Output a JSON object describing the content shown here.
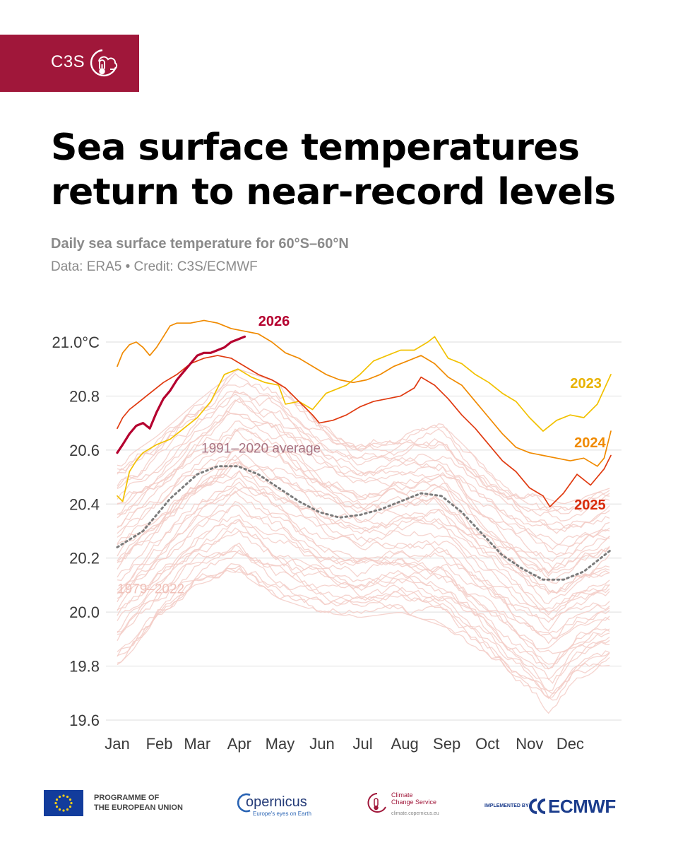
{
  "brand": {
    "label": "C3S",
    "color": "#A0173A",
    "logo_icon": "cloud-thermometer-icon"
  },
  "headline": {
    "line1": "Sea surface temperatures",
    "line2": "return to near-record levels"
  },
  "subtitle": "Daily sea surface temperature for 60°S–60°N",
  "credit": "Data: ERA5 • Credit: C3S/ECMWF",
  "chart_data": {
    "type": "line",
    "title": "",
    "xlabel": "",
    "ylabel": "",
    "ylim": [
      19.6,
      21.0
    ],
    "yticks": [
      "21.0°C",
      "20.8",
      "20.6",
      "20.4",
      "20.2",
      "20.0",
      "19.8",
      "19.6"
    ],
    "x_tick_labels": [
      "Jan",
      "Feb",
      "Mar",
      "Apr",
      "May",
      "Jun",
      "Jul",
      "Aug",
      "Sep",
      "Oct",
      "Nov",
      "Dec"
    ],
    "x_unit": "day of year",
    "grid": "horizontal",
    "legend": "direct labels",
    "series": [
      {
        "name": "2026",
        "color": "#B5002F",
        "label_color": "#B5002F",
        "width": 3.2,
        "points": [
          [
            1,
            20.59
          ],
          [
            5,
            20.62
          ],
          [
            10,
            20.66
          ],
          [
            15,
            20.69
          ],
          [
            20,
            20.7
          ],
          [
            25,
            20.68
          ],
          [
            30,
            20.74
          ],
          [
            35,
            20.79
          ],
          [
            40,
            20.82
          ],
          [
            45,
            20.86
          ],
          [
            50,
            20.89
          ],
          [
            55,
            20.92
          ],
          [
            60,
            20.95
          ],
          [
            65,
            20.96
          ],
          [
            70,
            20.96
          ],
          [
            75,
            20.97
          ],
          [
            80,
            20.98
          ],
          [
            85,
            21.0
          ],
          [
            90,
            21.01
          ],
          [
            95,
            21.02
          ]
        ]
      },
      {
        "name": "2023",
        "color": "#F2C100",
        "label_color": "#E8B200",
        "width": 1.7,
        "points": [
          [
            1,
            20.43
          ],
          [
            5,
            20.41
          ],
          [
            10,
            20.52
          ],
          [
            15,
            20.56
          ],
          [
            20,
            20.59
          ],
          [
            30,
            20.62
          ],
          [
            40,
            20.64
          ],
          [
            50,
            20.68
          ],
          [
            60,
            20.72
          ],
          [
            70,
            20.78
          ],
          [
            80,
            20.88
          ],
          [
            90,
            20.9
          ],
          [
            100,
            20.87
          ],
          [
            110,
            20.85
          ],
          [
            120,
            20.84
          ],
          [
            125,
            20.77
          ],
          [
            135,
            20.78
          ],
          [
            145,
            20.75
          ],
          [
            155,
            20.81
          ],
          [
            170,
            20.84
          ],
          [
            180,
            20.88
          ],
          [
            190,
            20.93
          ],
          [
            200,
            20.95
          ],
          [
            210,
            20.97
          ],
          [
            220,
            20.97
          ],
          [
            230,
            21.0
          ],
          [
            235,
            21.02
          ],
          [
            245,
            20.94
          ],
          [
            255,
            20.92
          ],
          [
            265,
            20.88
          ],
          [
            275,
            20.85
          ],
          [
            285,
            20.81
          ],
          [
            295,
            20.78
          ],
          [
            305,
            20.72
          ],
          [
            315,
            20.67
          ],
          [
            325,
            20.71
          ],
          [
            335,
            20.73
          ],
          [
            345,
            20.72
          ],
          [
            355,
            20.77
          ],
          [
            365,
            20.88
          ]
        ]
      },
      {
        "name": "2024",
        "color": "#F08A00",
        "label_color": "#F08A00",
        "width": 1.7,
        "points": [
          [
            1,
            20.91
          ],
          [
            5,
            20.96
          ],
          [
            10,
            20.99
          ],
          [
            15,
            21.0
          ],
          [
            20,
            20.98
          ],
          [
            25,
            20.95
          ],
          [
            30,
            20.98
          ],
          [
            35,
            21.02
          ],
          [
            40,
            21.06
          ],
          [
            45,
            21.07
          ],
          [
            55,
            21.07
          ],
          [
            65,
            21.08
          ],
          [
            75,
            21.07
          ],
          [
            85,
            21.05
          ],
          [
            95,
            21.04
          ],
          [
            105,
            21.03
          ],
          [
            115,
            21.0
          ],
          [
            125,
            20.96
          ],
          [
            135,
            20.94
          ],
          [
            145,
            20.91
          ],
          [
            155,
            20.88
          ],
          [
            165,
            20.86
          ],
          [
            175,
            20.85
          ],
          [
            185,
            20.86
          ],
          [
            195,
            20.88
          ],
          [
            205,
            20.91
          ],
          [
            215,
            20.93
          ],
          [
            225,
            20.95
          ],
          [
            235,
            20.92
          ],
          [
            245,
            20.87
          ],
          [
            255,
            20.84
          ],
          [
            265,
            20.78
          ],
          [
            275,
            20.72
          ],
          [
            285,
            20.66
          ],
          [
            295,
            20.61
          ],
          [
            305,
            20.59
          ],
          [
            315,
            20.58
          ],
          [
            325,
            20.57
          ],
          [
            335,
            20.56
          ],
          [
            345,
            20.57
          ],
          [
            355,
            20.54
          ],
          [
            360,
            20.57
          ],
          [
            365,
            20.67
          ]
        ]
      },
      {
        "name": "2025",
        "color": "#E03A10",
        "label_color": "#D82A0A",
        "width": 1.7,
        "points": [
          [
            1,
            20.68
          ],
          [
            5,
            20.72
          ],
          [
            10,
            20.75
          ],
          [
            15,
            20.77
          ],
          [
            25,
            20.81
          ],
          [
            35,
            20.85
          ],
          [
            45,
            20.88
          ],
          [
            55,
            20.92
          ],
          [
            65,
            20.94
          ],
          [
            75,
            20.95
          ],
          [
            85,
            20.94
          ],
          [
            95,
            20.91
          ],
          [
            105,
            20.88
          ],
          [
            115,
            20.86
          ],
          [
            125,
            20.83
          ],
          [
            135,
            20.78
          ],
          [
            145,
            20.73
          ],
          [
            150,
            20.7
          ],
          [
            160,
            20.71
          ],
          [
            170,
            20.73
          ],
          [
            180,
            20.76
          ],
          [
            190,
            20.78
          ],
          [
            200,
            20.79
          ],
          [
            210,
            20.8
          ],
          [
            220,
            20.83
          ],
          [
            225,
            20.87
          ],
          [
            235,
            20.84
          ],
          [
            245,
            20.79
          ],
          [
            255,
            20.73
          ],
          [
            265,
            20.68
          ],
          [
            275,
            20.62
          ],
          [
            285,
            20.56
          ],
          [
            295,
            20.52
          ],
          [
            305,
            20.46
          ],
          [
            315,
            20.43
          ],
          [
            320,
            20.39
          ],
          [
            330,
            20.44
          ],
          [
            340,
            20.51
          ],
          [
            350,
            20.47
          ],
          [
            360,
            20.53
          ],
          [
            365,
            20.58
          ]
        ]
      },
      {
        "name": "1991–2020 average",
        "color": "#7C7C7C",
        "label_color": "#A87382",
        "dash": "2.5 4.5",
        "width": 3,
        "points": [
          [
            1,
            20.24
          ],
          [
            20,
            20.3
          ],
          [
            40,
            20.42
          ],
          [
            60,
            20.51
          ],
          [
            75,
            20.54
          ],
          [
            90,
            20.54
          ],
          [
            105,
            20.51
          ],
          [
            120,
            20.46
          ],
          [
            135,
            20.41
          ],
          [
            150,
            20.37
          ],
          [
            165,
            20.35
          ],
          [
            180,
            20.36
          ],
          [
            195,
            20.38
          ],
          [
            210,
            20.41
          ],
          [
            225,
            20.44
          ],
          [
            240,
            20.43
          ],
          [
            255,
            20.37
          ],
          [
            270,
            20.29
          ],
          [
            285,
            20.21
          ],
          [
            300,
            20.16
          ],
          [
            315,
            20.12
          ],
          [
            330,
            20.12
          ],
          [
            345,
            20.15
          ],
          [
            360,
            20.21
          ],
          [
            365,
            20.23
          ]
        ]
      }
    ],
    "background_series": {
      "name": "1979–2022",
      "color": "#F3CDC7",
      "label_color": "#F0C0B8",
      "count": 44,
      "envelope_low": [
        [
          1,
          19.8
        ],
        [
          30,
          19.95
        ],
        [
          60,
          20.1
        ],
        [
          90,
          20.15
        ],
        [
          120,
          20.05
        ],
        [
          150,
          20.0
        ],
        [
          180,
          19.98
        ],
        [
          210,
          20.0
        ],
        [
          240,
          19.95
        ],
        [
          270,
          19.85
        ],
        [
          300,
          19.72
        ],
        [
          320,
          19.62
        ],
        [
          340,
          19.75
        ],
        [
          365,
          19.8
        ]
      ],
      "envelope_high": [
        [
          1,
          20.55
        ],
        [
          30,
          20.65
        ],
        [
          60,
          20.78
        ],
        [
          90,
          20.9
        ],
        [
          120,
          20.85
        ],
        [
          150,
          20.72
        ],
        [
          180,
          20.64
        ],
        [
          210,
          20.66
        ],
        [
          240,
          20.7
        ],
        [
          270,
          20.55
        ],
        [
          300,
          20.45
        ],
        [
          330,
          20.4
        ],
        [
          365,
          20.46
        ]
      ]
    },
    "annotations": [
      {
        "text": "2026",
        "x": 105,
        "y": 21.06,
        "color": "#B5002F"
      },
      {
        "text": "2023",
        "x": 335,
        "y": 20.83,
        "color": "#E8B200"
      },
      {
        "text": "2024",
        "x": 338,
        "y": 20.61,
        "color": "#F08A00"
      },
      {
        "text": "2025",
        "x": 338,
        "y": 20.38,
        "color": "#D82A0A"
      },
      {
        "text": "1991–2020 average",
        "x": 63,
        "y": 20.59,
        "color": "#A87382"
      },
      {
        "text": "1979–2022",
        "x": 1,
        "y": 20.07,
        "color": "#F0C0B8"
      }
    ]
  },
  "footer": {
    "eu_label": [
      "PROGRAMME OF",
      "THE EUROPEAN UNION"
    ],
    "copernicus_word": "opernicus",
    "copernicus_tagline": "Europe's eyes on Earth",
    "ccs_name": [
      "Climate",
      "Change Service"
    ],
    "ccs_url": "climate.copernicus.eu",
    "implemented_by": "IMPLEMENTED BY",
    "ecmwf": "ECMWF"
  }
}
